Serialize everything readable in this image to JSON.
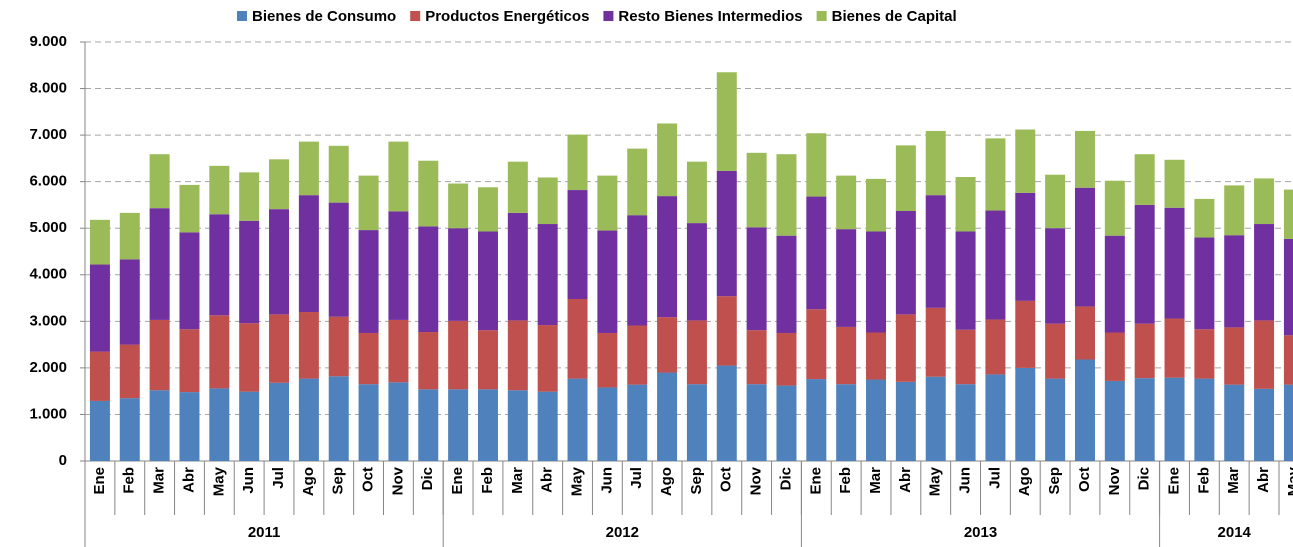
{
  "chart_data": {
    "type": "stacked_bar",
    "categories": [
      "Ene",
      "Feb",
      "Mar",
      "Abr",
      "May",
      "Jun",
      "Jul",
      "Ago",
      "Sep",
      "Oct",
      "Nov",
      "Dic",
      "Ene",
      "Feb",
      "Mar",
      "Abr",
      "May",
      "Jun",
      "Jul",
      "Ago",
      "Sep",
      "Oct",
      "Nov",
      "Dic",
      "Ene",
      "Feb",
      "Mar",
      "Abr",
      "May",
      "Jun",
      "Jul",
      "Ago",
      "Sep",
      "Oct",
      "Nov",
      "Dic",
      "Ene",
      "Feb",
      "Mar",
      "Abr",
      "May"
    ],
    "years": [
      "2011",
      "2012",
      "2013",
      "2014"
    ],
    "series": [
      {
        "name": "Bienes de Consumo",
        "color": "#4f81bd",
        "values": [
          1290,
          1350,
          1520,
          1480,
          1560,
          1490,
          1680,
          1770,
          1820,
          1650,
          1690,
          1540,
          1540,
          1540,
          1520,
          1490,
          1770,
          1580,
          1640,
          1900,
          1650,
          2050,
          1650,
          1620,
          1760,
          1650,
          1750,
          1700,
          1810,
          1650,
          1860,
          2000,
          1770,
          2180,
          1720,
          1780,
          1790,
          1770,
          1640,
          1550,
          1640
        ]
      },
      {
        "name": "Productos Energéticos",
        "color": "#c0504d",
        "values": [
          1060,
          1150,
          1510,
          1350,
          1570,
          1470,
          1470,
          1430,
          1280,
          1100,
          1340,
          1230,
          1470,
          1270,
          1500,
          1430,
          1710,
          1170,
          1270,
          1190,
          1370,
          1490,
          1160,
          1130,
          1500,
          1230,
          1010,
          1450,
          1480,
          1170,
          1180,
          1440,
          1180,
          1140,
          1040,
          1170,
          1270,
          1060,
          1230,
          1470,
          1060
        ]
      },
      {
        "name": "Resto Bienes Intermedios",
        "color": "#7030a0",
        "values": [
          1870,
          1830,
          2400,
          2080,
          2170,
          2200,
          2260,
          2510,
          2450,
          2210,
          2330,
          2270,
          1990,
          2120,
          2310,
          2170,
          2340,
          2200,
          2370,
          2600,
          2090,
          2690,
          2210,
          2090,
          2420,
          2100,
          2170,
          2220,
          2420,
          2110,
          2340,
          2320,
          2050,
          2550,
          2080,
          2550,
          2380,
          1970,
          1980,
          2070,
          2070
        ]
      },
      {
        "name": "Bienes de Capital",
        "color": "#9bbb59",
        "values": [
          960,
          1000,
          1160,
          1020,
          1040,
          1040,
          1070,
          1150,
          1220,
          1170,
          1500,
          1410,
          960,
          950,
          1100,
          1000,
          1190,
          1180,
          1430,
          1560,
          1320,
          2120,
          1600,
          1750,
          1360,
          1150,
          1130,
          1410,
          1380,
          1170,
          1550,
          1360,
          1150,
          1220,
          1180,
          1090,
          1030,
          830,
          1070,
          980,
          1060
        ]
      }
    ],
    "ylim": [
      0,
      9000
    ],
    "yticks": [
      0,
      {
        "value": 1000,
        "label": "1.000"
      },
      {
        "value": 2000,
        "label": "2.000"
      },
      {
        "value": 3000,
        "label": "3.000"
      },
      {
        "value": 4000,
        "label": "4.000"
      },
      {
        "value": 5000,
        "label": "5.000"
      },
      {
        "value": 6000,
        "label": "6.000"
      },
      {
        "value": 7000,
        "label": "7.000"
      },
      {
        "value": 8000,
        "label": "8.000"
      },
      {
        "value": 9000,
        "label": "9.000"
      }
    ],
    "grid": true
  }
}
